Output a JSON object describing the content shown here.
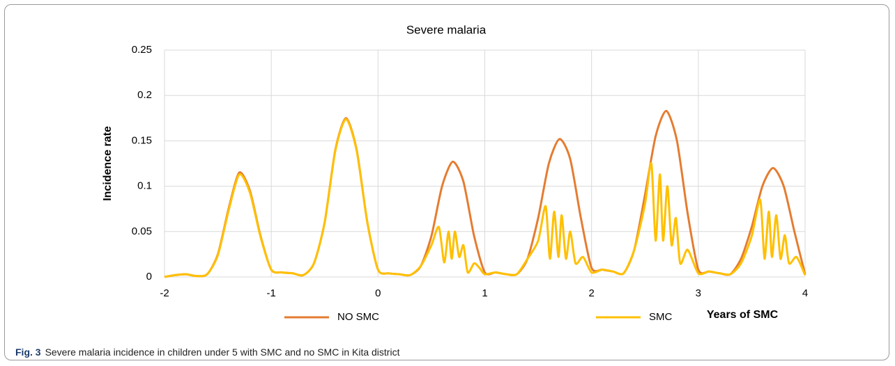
{
  "chart_data": {
    "type": "line",
    "title": "Severe malaria",
    "x_label": "Years of SMC",
    "y_label": "Incidence rate",
    "xlim": [
      -2,
      4
    ],
    "xticks": [
      -2,
      -1,
      0,
      1,
      2,
      3,
      4
    ],
    "ylim": [
      0,
      0.25
    ],
    "yticks": [
      0,
      0.05,
      0.1,
      0.15,
      0.2,
      0.25
    ],
    "grid": true,
    "legend": "bottom",
    "series": [
      {
        "name": "NO SMC",
        "color": "#e57c30",
        "x": [
          -2.0,
          -1.9,
          -1.8,
          -1.7,
          -1.6,
          -1.5,
          -1.4,
          -1.3,
          -1.2,
          -1.1,
          -1.0,
          -0.9,
          -0.8,
          -0.7,
          -0.6,
          -0.5,
          -0.4,
          -0.3,
          -0.2,
          -0.1,
          0.0,
          0.1,
          0.2,
          0.3,
          0.4,
          0.5,
          0.6,
          0.7,
          0.8,
          0.9,
          1.0,
          1.1,
          1.2,
          1.3,
          1.4,
          1.5,
          1.6,
          1.7,
          1.8,
          1.9,
          2.0,
          2.1,
          2.2,
          2.3,
          2.4,
          2.5,
          2.6,
          2.7,
          2.8,
          2.9,
          3.0,
          3.1,
          3.2,
          3.3,
          3.4,
          3.5,
          3.6,
          3.7,
          3.8,
          3.9,
          4.0
        ],
        "values": [
          0,
          0.002,
          0.003,
          0.001,
          0.003,
          0.025,
          0.075,
          0.115,
          0.095,
          0.045,
          0.008,
          0.005,
          0.004,
          0.002,
          0.015,
          0.06,
          0.14,
          0.175,
          0.14,
          0.06,
          0.008,
          0.004,
          0.003,
          0.002,
          0.012,
          0.045,
          0.1,
          0.127,
          0.105,
          0.045,
          0.005,
          0.005,
          0.003,
          0.003,
          0.02,
          0.065,
          0.125,
          0.152,
          0.13,
          0.065,
          0.01,
          0.008,
          0.006,
          0.004,
          0.03,
          0.09,
          0.155,
          0.183,
          0.15,
          0.07,
          0.008,
          0.006,
          0.004,
          0.003,
          0.02,
          0.055,
          0.1,
          0.12,
          0.1,
          0.05,
          0.003
        ]
      },
      {
        "name": "SMC",
        "color": "#ffc000",
        "x": [
          -2.0,
          -1.9,
          -1.8,
          -1.7,
          -1.6,
          -1.5,
          -1.4,
          -1.3,
          -1.2,
          -1.1,
          -1.0,
          -0.9,
          -0.8,
          -0.7,
          -0.6,
          -0.5,
          -0.4,
          -0.3,
          -0.2,
          -0.1,
          0.0,
          0.1,
          0.2,
          0.3,
          0.4,
          0.5,
          0.57,
          0.62,
          0.66,
          0.69,
          0.72,
          0.76,
          0.8,
          0.84,
          0.9,
          0.95,
          1.0,
          1.1,
          1.2,
          1.3,
          1.4,
          1.5,
          1.57,
          1.61,
          1.65,
          1.69,
          1.72,
          1.76,
          1.8,
          1.85,
          1.92,
          2.0,
          2.1,
          2.2,
          2.3,
          2.4,
          2.5,
          2.56,
          2.6,
          2.64,
          2.67,
          2.71,
          2.75,
          2.79,
          2.83,
          2.9,
          3.0,
          3.1,
          3.2,
          3.3,
          3.4,
          3.5,
          3.58,
          3.62,
          3.66,
          3.69,
          3.73,
          3.77,
          3.81,
          3.85,
          3.92,
          4.0
        ],
        "values": [
          0,
          0.002,
          0.003,
          0.001,
          0.003,
          0.024,
          0.073,
          0.113,
          0.093,
          0.044,
          0.008,
          0.005,
          0.004,
          0.002,
          0.015,
          0.06,
          0.139,
          0.174,
          0.139,
          0.06,
          0.008,
          0.004,
          0.003,
          0.002,
          0.012,
          0.035,
          0.055,
          0.016,
          0.05,
          0.02,
          0.05,
          0.022,
          0.035,
          0.005,
          0.015,
          0.01,
          0.003,
          0.005,
          0.003,
          0.003,
          0.02,
          0.04,
          0.078,
          0.02,
          0.072,
          0.022,
          0.068,
          0.02,
          0.05,
          0.015,
          0.022,
          0.005,
          0.008,
          0.006,
          0.004,
          0.03,
          0.08,
          0.125,
          0.04,
          0.113,
          0.04,
          0.1,
          0.035,
          0.065,
          0.015,
          0.03,
          0.004,
          0.006,
          0.004,
          0.003,
          0.015,
          0.045,
          0.085,
          0.02,
          0.072,
          0.022,
          0.068,
          0.02,
          0.046,
          0.015,
          0.022,
          0.002
        ]
      }
    ]
  },
  "caption": {
    "label": "Fig. 3",
    "text": "Severe malaria incidence in children under 5 with SMC and no SMC in Kita district"
  }
}
